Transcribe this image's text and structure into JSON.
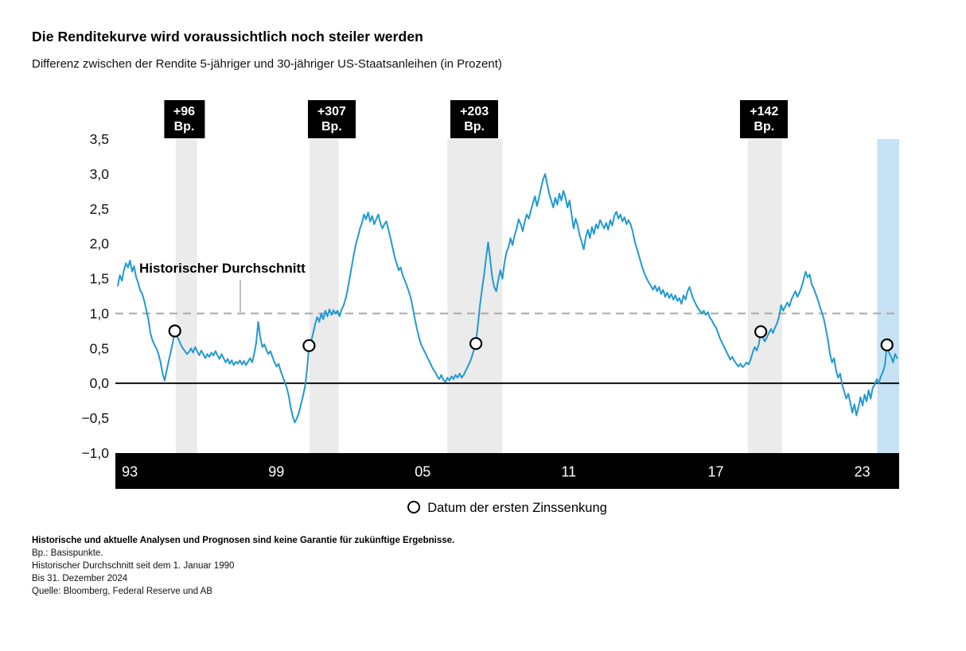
{
  "chart_data": {
    "type": "line",
    "title": "Die Renditekurve wird voraussichtlich noch steiler werden",
    "subtitle": "Differenz zwischen der Rendite 5-jähriger und 30-jähriger US-Staatsanleihen (in Prozent)",
    "legend_label": "Datum der ersten Zinssenkung",
    "xlim": [
      1992.9,
      2025.0
    ],
    "ylim": [
      -1.0,
      3.5
    ],
    "grid": false,
    "y_ticks": [
      {
        "v": 3.5,
        "label": "3,5"
      },
      {
        "v": 3.0,
        "label": "3,0"
      },
      {
        "v": 2.5,
        "label": "2,5"
      },
      {
        "v": 2.0,
        "label": "2,0"
      },
      {
        "v": 1.5,
        "label": "1,5"
      },
      {
        "v": 1.0,
        "label": "1,0"
      },
      {
        "v": 0.5,
        "label": "0,5"
      },
      {
        "v": 0.0,
        "label": "0,0"
      },
      {
        "v": -0.5,
        "label": "−0,5"
      },
      {
        "v": -1.0,
        "label": "−1,0"
      }
    ],
    "x_ticks": [
      {
        "v": 1993,
        "label": "93"
      },
      {
        "v": 1999,
        "label": "99"
      },
      {
        "v": 2005,
        "label": "05"
      },
      {
        "v": 2011,
        "label": "11"
      },
      {
        "v": 2017,
        "label": "17"
      },
      {
        "v": 2023,
        "label": "23"
      }
    ],
    "average_line": {
      "value": 1.0,
      "label": "Historischer Durchschnitt"
    },
    "zero_line_value": 0.0,
    "colors": {
      "line": "#2299d1",
      "band": "#ebebeb",
      "highlight_band": "#c6e2f4",
      "average_line": "#a9a9a9",
      "annotation_bg": "#000000",
      "axis_bar": "#000000"
    },
    "bands": [
      {
        "from": 1995.37,
        "to": 1996.24
      },
      {
        "from": 2000.85,
        "to": 2002.05
      },
      {
        "from": 2006.5,
        "to": 2008.75
      },
      {
        "from": 2018.8,
        "to": 2020.2
      }
    ],
    "highlight_band": {
      "from": 2024.1,
      "to": 2025.0
    },
    "annotations": [
      {
        "x": 1995.72,
        "value_label": "+96",
        "unit_label": "Bp."
      },
      {
        "x": 2001.76,
        "value_label": "+307",
        "unit_label": "Bp."
      },
      {
        "x": 2007.6,
        "value_label": "+203",
        "unit_label": "Bp."
      },
      {
        "x": 2019.47,
        "value_label": "+142",
        "unit_label": "Bp."
      }
    ],
    "markers": [
      {
        "x": 1995.333,
        "y": 0.75
      },
      {
        "x": 2000.833,
        "y": 0.54
      },
      {
        "x": 2007.667,
        "y": 0.57
      },
      {
        "x": 2019.333,
        "y": 0.74
      },
      {
        "x": 2024.5,
        "y": 0.55
      }
    ],
    "series": [
      {
        "name": "Differenz Rendite 5-jähriger vs. 30-jähriger US-Staatsanleihen (Prozent)",
        "x_start": 1993.0,
        "x_step": 0.0833333,
        "values": [
          1.4,
          1.55,
          1.47,
          1.62,
          1.72,
          1.66,
          1.76,
          1.6,
          1.68,
          1.52,
          1.44,
          1.33,
          1.28,
          1.18,
          1.05,
          0.92,
          0.72,
          0.62,
          0.55,
          0.5,
          0.42,
          0.3,
          0.14,
          0.04,
          0.18,
          0.32,
          0.45,
          0.58,
          0.75,
          0.68,
          0.62,
          0.55,
          0.5,
          0.46,
          0.42,
          0.45,
          0.5,
          0.44,
          0.52,
          0.46,
          0.4,
          0.47,
          0.42,
          0.36,
          0.42,
          0.38,
          0.44,
          0.4,
          0.46,
          0.4,
          0.35,
          0.42,
          0.36,
          0.3,
          0.35,
          0.28,
          0.33,
          0.26,
          0.31,
          0.28,
          0.33,
          0.27,
          0.32,
          0.26,
          0.31,
          0.36,
          0.3,
          0.42,
          0.58,
          0.88,
          0.66,
          0.52,
          0.56,
          0.48,
          0.42,
          0.46,
          0.38,
          0.3,
          0.24,
          0.28,
          0.18,
          0.1,
          0.02,
          -0.06,
          -0.18,
          -0.35,
          -0.48,
          -0.56,
          -0.5,
          -0.42,
          -0.3,
          -0.18,
          -0.05,
          0.2,
          0.54,
          0.6,
          0.72,
          0.85,
          0.95,
          0.88,
          1.0,
          0.92,
          1.04,
          0.96,
          1.06,
          0.98,
          1.05,
          1.0,
          1.04,
          0.96,
          1.06,
          1.12,
          1.22,
          1.35,
          1.52,
          1.68,
          1.85,
          2.0,
          2.1,
          2.22,
          2.3,
          2.42,
          2.35,
          2.45,
          2.32,
          2.4,
          2.28,
          2.35,
          2.42,
          2.3,
          2.22,
          2.28,
          2.32,
          2.2,
          2.08,
          1.95,
          1.82,
          1.72,
          1.62,
          1.66,
          1.55,
          1.48,
          1.4,
          1.32,
          1.22,
          1.08,
          0.92,
          0.78,
          0.66,
          0.56,
          0.5,
          0.44,
          0.38,
          0.32,
          0.26,
          0.2,
          0.16,
          0.1,
          0.06,
          0.12,
          0.05,
          0.02,
          0.08,
          0.04,
          0.1,
          0.06,
          0.12,
          0.08,
          0.14,
          0.08,
          0.12,
          0.18,
          0.24,
          0.3,
          0.38,
          0.48,
          0.57,
          0.85,
          1.12,
          1.35,
          1.55,
          1.8,
          2.02,
          1.78,
          1.52,
          1.38,
          1.32,
          1.48,
          1.62,
          1.5,
          1.72,
          1.88,
          1.95,
          2.08,
          1.98,
          2.12,
          2.22,
          2.35,
          2.28,
          2.18,
          2.32,
          2.42,
          2.36,
          2.48,
          2.58,
          2.68,
          2.54,
          2.66,
          2.8,
          2.92,
          3.0,
          2.86,
          2.72,
          2.62,
          2.52,
          2.66,
          2.56,
          2.72,
          2.62,
          2.76,
          2.66,
          2.52,
          2.62,
          2.42,
          2.22,
          2.36,
          2.26,
          2.12,
          2.02,
          1.92,
          2.1,
          2.2,
          2.08,
          2.24,
          2.14,
          2.28,
          2.22,
          2.34,
          2.28,
          2.22,
          2.3,
          2.2,
          2.34,
          2.26,
          2.4,
          2.46,
          2.36,
          2.42,
          2.32,
          2.38,
          2.28,
          2.34,
          2.28,
          2.18,
          2.04,
          1.94,
          1.84,
          1.74,
          1.64,
          1.56,
          1.5,
          1.44,
          1.4,
          1.34,
          1.4,
          1.32,
          1.38,
          1.28,
          1.34,
          1.24,
          1.3,
          1.22,
          1.28,
          1.2,
          1.26,
          1.18,
          1.22,
          1.14,
          1.26,
          1.2,
          1.32,
          1.38,
          1.28,
          1.2,
          1.14,
          1.08,
          1.04,
          1.0,
          1.04,
          0.98,
          1.02,
          0.94,
          0.9,
          0.84,
          0.8,
          0.72,
          0.64,
          0.58,
          0.52,
          0.46,
          0.4,
          0.34,
          0.38,
          0.32,
          0.28,
          0.24,
          0.28,
          0.23,
          0.26,
          0.3,
          0.27,
          0.34,
          0.44,
          0.52,
          0.47,
          0.56,
          0.74,
          0.66,
          0.6,
          0.66,
          0.72,
          0.78,
          0.72,
          0.8,
          0.86,
          0.96,
          1.12,
          1.04,
          1.1,
          1.16,
          1.1,
          1.2,
          1.26,
          1.32,
          1.24,
          1.3,
          1.38,
          1.48,
          1.6,
          1.52,
          1.56,
          1.42,
          1.36,
          1.28,
          1.2,
          1.1,
          1.02,
          0.92,
          0.78,
          0.62,
          0.42,
          0.3,
          0.36,
          0.18,
          0.08,
          0.14,
          -0.02,
          -0.12,
          -0.22,
          -0.15,
          -0.28,
          -0.42,
          -0.3,
          -0.46,
          -0.34,
          -0.2,
          -0.32,
          -0.16,
          -0.26,
          -0.1,
          -0.22,
          -0.06,
          -0.02,
          0.06,
          0.0,
          0.1,
          0.16,
          0.26,
          0.55,
          0.44,
          0.38,
          0.3,
          0.42,
          0.36
        ]
      }
    ]
  },
  "footnotes": {
    "disclaimer": "Historische und aktuelle Analysen und Prognosen sind keine Garantie für zukünftige Ergebnisse.",
    "lines": [
      "Bp.: Basispunkte.",
      "Historischer Durchschnitt seit dem 1. Januar 1990",
      "Bis 31. Dezember 2024",
      "Quelle: Bloomberg, Federal Reserve und AB"
    ]
  }
}
